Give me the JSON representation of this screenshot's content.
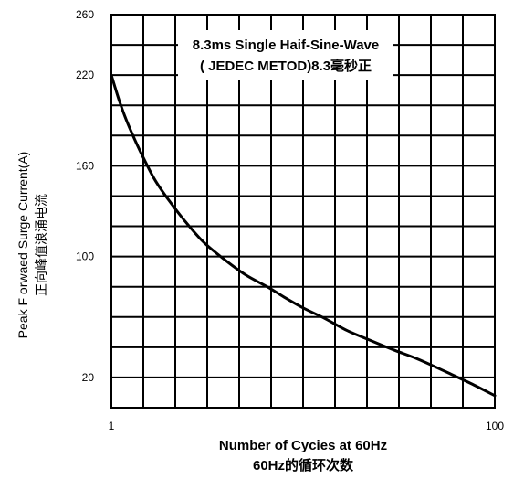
{
  "chart_data": {
    "type": "line",
    "xscale": "log",
    "xlim": [
      1,
      100
    ],
    "ylim": [
      0,
      260
    ],
    "yticks": [
      "20",
      "100",
      "160",
      "220",
      "260"
    ],
    "xticks": [
      "1",
      "100"
    ],
    "ylabel_en": "Peak F orwaed Surge Current(A)",
    "ylabel_cn": "正向峰值浪涌电流",
    "xlabel_en": "Number of Cycies at 60Hz",
    "xlabel_cn": "60Hz的循环次数",
    "annotation": [
      "8.3ms Single Haif-Sine-Wave",
      "( JEDEC METOD)8.3毫秒正"
    ],
    "grid": true,
    "series": [
      {
        "x": [
          1,
          1.1,
          1.2,
          1.35,
          1.5,
          1.7,
          2,
          2.4,
          3,
          3.8,
          5,
          6.5,
          8,
          10,
          13,
          17,
          22,
          30,
          40,
          55,
          75,
          100
        ],
        "y": [
          220,
          203,
          190,
          175,
          163,
          150,
          137,
          124,
          110,
          99,
          88,
          80,
          73,
          66,
          59,
          51,
          45,
          38,
          32,
          24,
          16,
          8
        ]
      }
    ]
  }
}
